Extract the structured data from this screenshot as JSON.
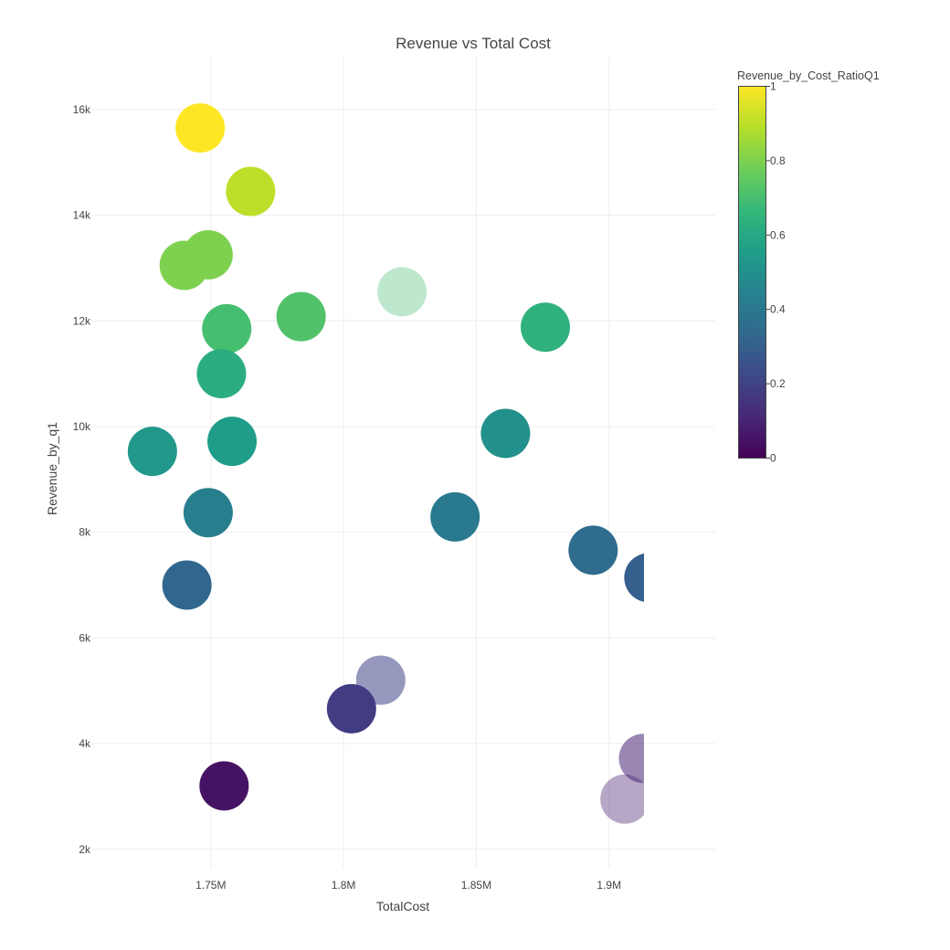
{
  "chart_data": {
    "type": "scatter",
    "title": "Revenue vs Total Cost",
    "xlabel": "TotalCost",
    "ylabel": "Revenue_by_q1",
    "xlim": [
      1.705,
      1.94
    ],
    "ylim": [
      1650,
      17000
    ],
    "x_ticks": [
      {
        "value": 1.75,
        "label": "1.75M"
      },
      {
        "value": 1.8,
        "label": "1.8M"
      },
      {
        "value": 1.85,
        "label": "1.85M"
      },
      {
        "value": 1.9,
        "label": "1.9M"
      }
    ],
    "y_ticks": [
      {
        "value": 2000,
        "label": "2k"
      },
      {
        "value": 4000,
        "label": "4k"
      },
      {
        "value": 6000,
        "label": "6k"
      },
      {
        "value": 8000,
        "label": "8k"
      },
      {
        "value": 10000,
        "label": "10k"
      },
      {
        "value": 12000,
        "label": "12k"
      },
      {
        "value": 14000,
        "label": "14k"
      },
      {
        "value": 16000,
        "label": "16k"
      }
    ],
    "grid": true,
    "colorbar": {
      "title": "Revenue_by_Cost_RatioQ1",
      "colorscale": "Viridis",
      "range": [
        0,
        1
      ],
      "ticks": [
        {
          "value": 0,
          "label": "0"
        },
        {
          "value": 0.2,
          "label": "0.2"
        },
        {
          "value": 0.4,
          "label": "0.4"
        },
        {
          "value": 0.6,
          "label": "0.6"
        },
        {
          "value": 0.8,
          "label": "0.8"
        },
        {
          "value": 1,
          "label": "1"
        }
      ]
    },
    "points": [
      {
        "x": 1.746,
        "y": 15650,
        "ratio": 1.0,
        "opacity": 1
      },
      {
        "x": 1.765,
        "y": 14450,
        "ratio": 0.9,
        "opacity": 1
      },
      {
        "x": 1.749,
        "y": 13250,
        "ratio": 0.8,
        "opacity": 1
      },
      {
        "x": 1.74,
        "y": 13050,
        "ratio": 0.8,
        "opacity": 1
      },
      {
        "x": 1.822,
        "y": 12550,
        "ratio": 0.7,
        "opacity": 0.35
      },
      {
        "x": 1.784,
        "y": 12080,
        "ratio": 0.72,
        "opacity": 1
      },
      {
        "x": 1.756,
        "y": 11850,
        "ratio": 0.7,
        "opacity": 1
      },
      {
        "x": 1.876,
        "y": 11880,
        "ratio": 0.64,
        "opacity": 1
      },
      {
        "x": 1.754,
        "y": 11000,
        "ratio": 0.62,
        "opacity": 1
      },
      {
        "x": 1.758,
        "y": 9720,
        "ratio": 0.55,
        "opacity": 1
      },
      {
        "x": 1.728,
        "y": 9530,
        "ratio": 0.53,
        "opacity": 1
      },
      {
        "x": 1.861,
        "y": 9870,
        "ratio": 0.5,
        "opacity": 1
      },
      {
        "x": 1.749,
        "y": 8370,
        "ratio": 0.43,
        "opacity": 1
      },
      {
        "x": 1.842,
        "y": 8290,
        "ratio": 0.41,
        "opacity": 1
      },
      {
        "x": 1.894,
        "y": 7660,
        "ratio": 0.35,
        "opacity": 1
      },
      {
        "x": 1.741,
        "y": 7000,
        "ratio": 0.33,
        "opacity": 1
      },
      {
        "x": 1.915,
        "y": 7140,
        "ratio": 0.3,
        "opacity": 1
      },
      {
        "x": 1.814,
        "y": 5200,
        "ratio": 0.2,
        "opacity": 0.55
      },
      {
        "x": 1.803,
        "y": 4660,
        "ratio": 0.18,
        "opacity": 1
      },
      {
        "x": 1.913,
        "y": 3720,
        "ratio": 0.1,
        "opacity": 0.55
      },
      {
        "x": 1.755,
        "y": 3200,
        "ratio": 0.05,
        "opacity": 1
      },
      {
        "x": 1.906,
        "y": 2950,
        "ratio": 0.1,
        "opacity": 0.4
      }
    ]
  }
}
